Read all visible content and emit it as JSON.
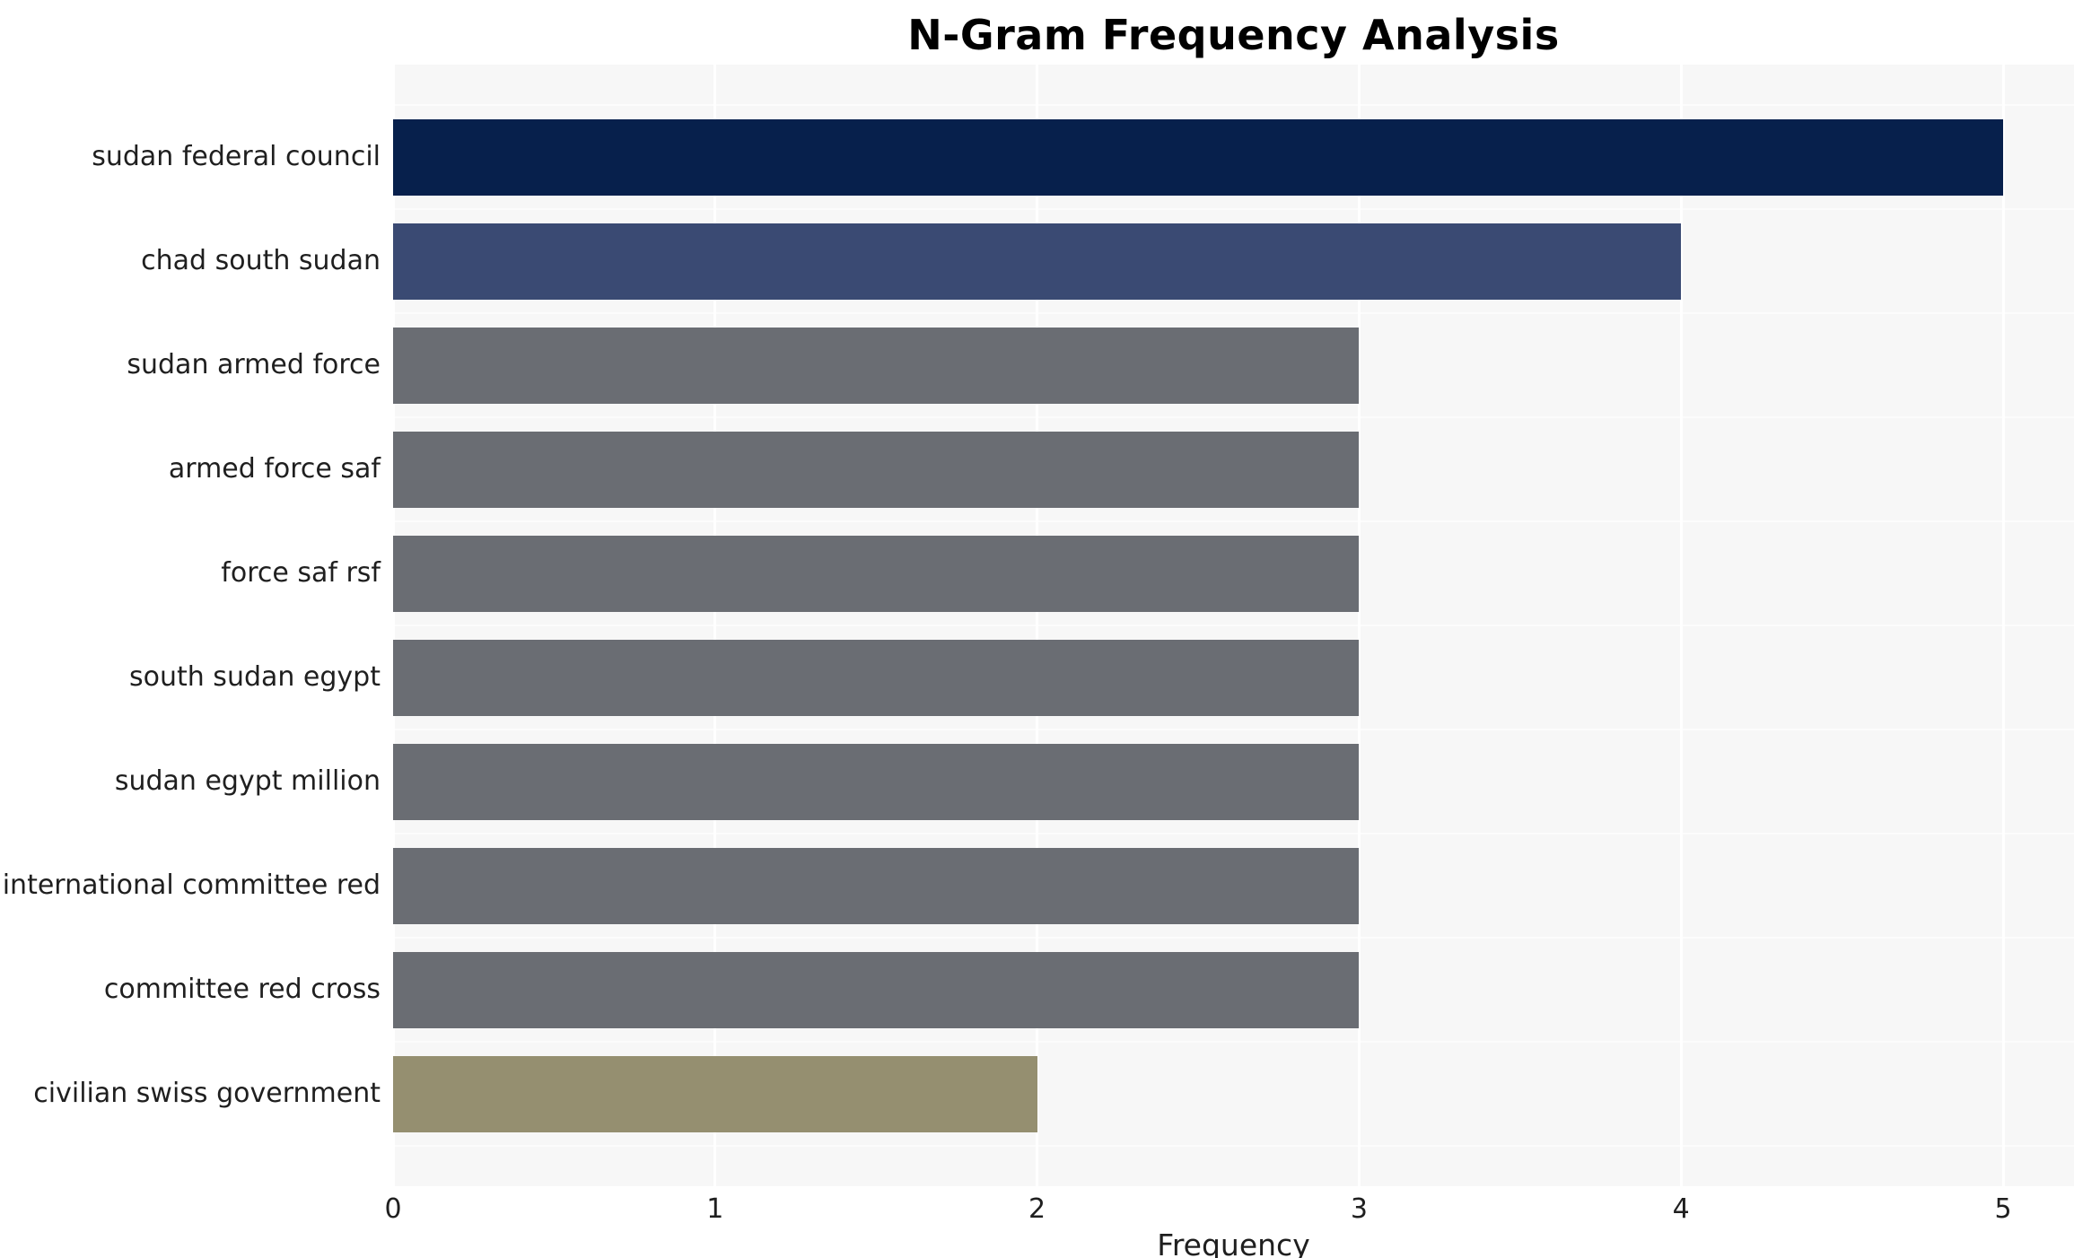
{
  "title": "N-Gram Frequency Analysis",
  "chart_data": {
    "type": "bar",
    "orientation": "horizontal",
    "title": "N-Gram Frequency Analysis",
    "xlabel": "Frequency",
    "ylabel": "",
    "xlim": [
      0,
      5
    ],
    "xticks": [
      0,
      1,
      2,
      3,
      4,
      5
    ],
    "grid": true,
    "legend": false,
    "plot_background": "#f7f7f7",
    "gridline_color": "#ffffff",
    "categories": [
      "sudan federal council",
      "chad south sudan",
      "sudan armed force",
      "armed force saf",
      "force saf rsf",
      "south sudan egypt",
      "sudan egypt million",
      "international committee red",
      "committee red cross",
      "civilian swiss government"
    ],
    "values": [
      5,
      4,
      3,
      3,
      3,
      3,
      3,
      3,
      3,
      2
    ],
    "bar_colors": [
      "#07204c",
      "#3a4a73",
      "#6a6d73",
      "#6a6d73",
      "#6a6d73",
      "#6a6d73",
      "#6a6d73",
      "#6a6d73",
      "#6a6d73",
      "#958f70"
    ]
  }
}
